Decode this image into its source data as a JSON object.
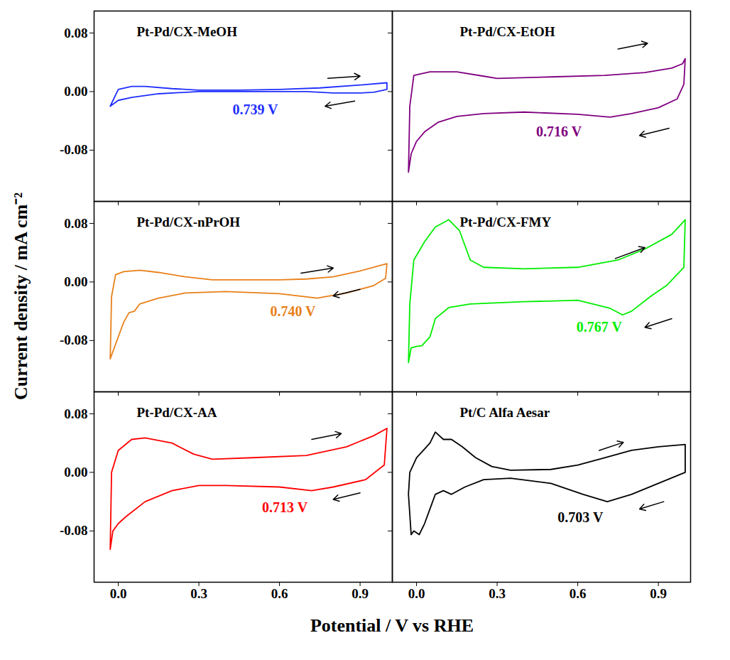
{
  "chart_data": {
    "type": "line",
    "xlabel": "Potential / V vs RHE",
    "ylabel": "Current density / mA cm⁻²",
    "xlim": [
      -0.09,
      1.02
    ],
    "ylim": [
      -0.15,
      0.11
    ],
    "xticks": [
      {
        "value": 0,
        "label": "0.0"
      },
      0.3,
      0.6,
      0.9
    ],
    "yticks": [
      -0.08,
      {
        "value": 0,
        "label": "0.00"
      },
      0.08
    ],
    "panels": [
      {
        "title": "Pt-Pd/CX-MeOH",
        "color": "#1f2fff",
        "tick_labels": "y",
        "x": [
          -0.03,
          0.0,
          0.05,
          0.1,
          0.2,
          0.3,
          0.45,
          0.6,
          0.75,
          0.9,
          1.0,
          1.0,
          0.95,
          0.9,
          0.8,
          0.7,
          0.5,
          0.3,
          0.15,
          0.05,
          0.0,
          -0.03
        ],
        "y": [
          -0.02,
          0.003,
          0.007,
          0.007,
          0.004,
          0.002,
          0.002,
          0.003,
          0.005,
          0.009,
          0.012,
          0.003,
          -0.001,
          -0.002,
          -0.002,
          0.0,
          0.0,
          0.0,
          -0.003,
          -0.008,
          -0.012,
          -0.02
        ],
        "peak_label": {
          "text": "0.739 V",
          "x": 0.51,
          "y": -0.025
        },
        "arrows": [
          {
            "x1": 0.78,
            "y1": 0.018,
            "x2": 0.9,
            "y2": 0.021
          },
          {
            "x1": 0.88,
            "y1": -0.013,
            "x2": 0.77,
            "y2": -0.02
          }
        ]
      },
      {
        "title": "Pt-Pd/CX-EtOH",
        "color": "#800080",
        "tick_labels": false,
        "x": [
          -0.03,
          -0.025,
          -0.01,
          0.05,
          0.15,
          0.25,
          0.3,
          0.5,
          0.7,
          0.85,
          0.95,
          0.99,
          1.0,
          0.995,
          0.97,
          0.9,
          0.8,
          0.72,
          0.6,
          0.4,
          0.25,
          0.15,
          0.08,
          0.03,
          0.0,
          -0.02,
          -0.03
        ],
        "y": [
          -0.11,
          -0.02,
          0.022,
          0.027,
          0.027,
          0.021,
          0.018,
          0.02,
          0.022,
          0.026,
          0.032,
          0.038,
          0.045,
          0.01,
          -0.01,
          -0.022,
          -0.03,
          -0.035,
          -0.031,
          -0.028,
          -0.03,
          -0.034,
          -0.042,
          -0.055,
          -0.068,
          -0.085,
          -0.11
        ],
        "peak_label": {
          "text": "0.716 V",
          "x": 0.53,
          "y": -0.055
        },
        "arrows": [
          {
            "x1": 0.75,
            "y1": 0.058,
            "x2": 0.86,
            "y2": 0.066
          },
          {
            "x1": 0.94,
            "y1": -0.05,
            "x2": 0.83,
            "y2": -0.06
          }
        ]
      },
      {
        "title": "Pt-Pd/CX-nPrOH",
        "color": "#e8801a",
        "tick_labels": "y",
        "x": [
          -0.03,
          -0.025,
          -0.01,
          0.02,
          0.08,
          0.15,
          0.25,
          0.35,
          0.5,
          0.6,
          0.7,
          0.8,
          0.9,
          0.97,
          1.0,
          0.995,
          0.95,
          0.85,
          0.74,
          0.6,
          0.4,
          0.25,
          0.15,
          0.08,
          0.06,
          0.04,
          0.02,
          0.0,
          -0.03
        ],
        "y": [
          -0.105,
          -0.02,
          0.01,
          0.014,
          0.016,
          0.013,
          0.007,
          0.003,
          0.003,
          0.003,
          0.004,
          0.007,
          0.015,
          0.022,
          0.025,
          0.005,
          -0.005,
          -0.015,
          -0.022,
          -0.016,
          -0.013,
          -0.015,
          -0.022,
          -0.03,
          -0.04,
          -0.042,
          -0.055,
          -0.075,
          -0.105
        ],
        "peak_label": {
          "text": "0.740 V",
          "x": 0.65,
          "y": -0.04
        },
        "arrows": [
          {
            "x1": 0.68,
            "y1": 0.012,
            "x2": 0.8,
            "y2": 0.019
          },
          {
            "x1": 0.9,
            "y1": -0.01,
            "x2": 0.8,
            "y2": -0.019
          }
        ]
      },
      {
        "title": "Pt-Pd/CX-FMY",
        "color": "#00ee00",
        "tick_labels": false,
        "x": [
          -0.03,
          -0.025,
          -0.01,
          0.03,
          0.07,
          0.12,
          0.16,
          0.2,
          0.25,
          0.4,
          0.6,
          0.75,
          0.85,
          0.95,
          1.0,
          0.995,
          0.93,
          0.87,
          0.8,
          0.767,
          0.72,
          0.6,
          0.4,
          0.2,
          0.12,
          0.07,
          0.05,
          0.02,
          0.0,
          -0.02,
          -0.03
        ],
        "y": [
          -0.11,
          -0.03,
          0.03,
          0.055,
          0.075,
          0.085,
          0.07,
          0.03,
          0.02,
          0.018,
          0.02,
          0.03,
          0.045,
          0.065,
          0.085,
          0.02,
          -0.005,
          -0.02,
          -0.04,
          -0.045,
          -0.036,
          -0.025,
          -0.027,
          -0.03,
          -0.035,
          -0.05,
          -0.075,
          -0.087,
          -0.088,
          -0.09,
          -0.11
        ],
        "peak_label": {
          "text": "0.767 V",
          "x": 0.68,
          "y": -0.062
        },
        "arrows": [
          {
            "x1": 0.74,
            "y1": 0.032,
            "x2": 0.85,
            "y2": 0.047
          },
          {
            "x1": 0.95,
            "y1": -0.05,
            "x2": 0.85,
            "y2": -0.062
          }
        ]
      },
      {
        "title": "Pt-Pd/CX-AA",
        "color": "#ff0000",
        "x": [
          -0.03,
          -0.025,
          0.0,
          0.05,
          0.1,
          0.2,
          0.28,
          0.35,
          0.5,
          0.7,
          0.85,
          0.95,
          1.0,
          0.99,
          0.92,
          0.8,
          0.72,
          0.6,
          0.4,
          0.3,
          0.2,
          0.1,
          0.03,
          0.0,
          -0.02,
          -0.03
        ],
        "y": [
          -0.105,
          0.0,
          0.03,
          0.045,
          0.047,
          0.04,
          0.025,
          0.018,
          0.02,
          0.023,
          0.035,
          0.05,
          0.06,
          0.01,
          -0.01,
          -0.02,
          -0.025,
          -0.02,
          -0.018,
          -0.018,
          -0.025,
          -0.04,
          -0.06,
          -0.07,
          -0.08,
          -0.105
        ],
        "peak_label": {
          "text": "0.713 V",
          "x": 0.62,
          "y": -0.048
        },
        "arrows": [
          {
            "x1": 0.72,
            "y1": 0.045,
            "x2": 0.83,
            "y2": 0.053
          },
          {
            "x1": 0.9,
            "y1": -0.028,
            "x2": 0.8,
            "y2": -0.037
          }
        ]
      },
      {
        "title": "Pt/C Alfa Aesar",
        "color": "#000000",
        "tick_labels": "x",
        "x": [
          -0.03,
          -0.025,
          0.0,
          0.05,
          0.07,
          0.1,
          0.13,
          0.17,
          0.22,
          0.28,
          0.35,
          0.5,
          0.6,
          0.7,
          0.8,
          0.9,
          1.0,
          1.0,
          0.9,
          0.8,
          0.71,
          0.62,
          0.5,
          0.35,
          0.25,
          0.18,
          0.13,
          0.1,
          0.07,
          0.05,
          0.03,
          0.01,
          -0.01,
          -0.02,
          -0.03
        ],
        "y": [
          -0.03,
          0.0,
          0.02,
          0.04,
          0.055,
          0.045,
          0.045,
          0.035,
          0.02,
          0.008,
          0.003,
          0.004,
          0.01,
          0.02,
          0.03,
          0.035,
          0.038,
          0.0,
          -0.015,
          -0.03,
          -0.04,
          -0.03,
          -0.015,
          -0.008,
          -0.01,
          -0.02,
          -0.03,
          -0.025,
          -0.03,
          -0.05,
          -0.07,
          -0.085,
          -0.08,
          -0.085,
          -0.03
        ],
        "peak_label": {
          "text": "0.703 V",
          "x": 0.61,
          "y": -0.062
        },
        "arrows": [
          {
            "x1": 0.68,
            "y1": 0.03,
            "x2": 0.77,
            "y2": 0.041
          },
          {
            "x1": 0.92,
            "y1": -0.04,
            "x2": 0.83,
            "y2": -0.05
          }
        ]
      }
    ]
  }
}
